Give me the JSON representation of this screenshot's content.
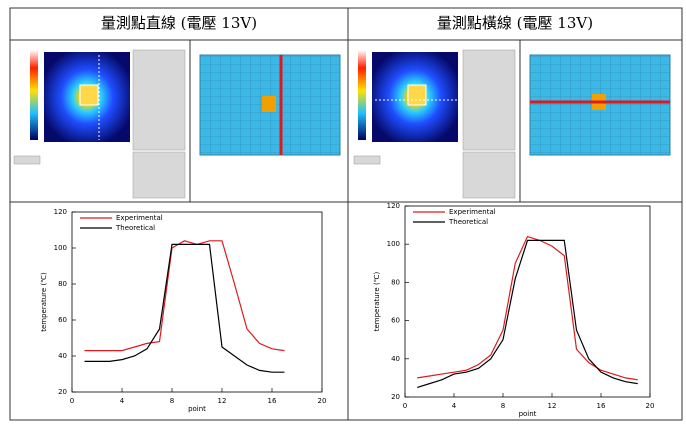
{
  "header": {
    "left_title": "量測點直線 (電壓 13V)",
    "right_title": "量測點橫線 (電壓 13V)"
  },
  "chart_data": [
    {
      "type": "line",
      "xlabel": "point",
      "ylabel": "temperature (℃)",
      "x": [
        1,
        2,
        3,
        4,
        5,
        6,
        7,
        8,
        9,
        10,
        11,
        12,
        13,
        14,
        15,
        16,
        17
      ],
      "series": [
        {
          "name": "Experimental",
          "color": "#e0191e",
          "values": [
            43,
            43,
            43,
            43,
            45,
            47,
            48,
            100,
            104,
            102,
            104,
            104,
            80,
            55,
            47,
            44,
            43
          ]
        },
        {
          "name": "Theoretical",
          "color": "#000000",
          "values": [
            37,
            37,
            37,
            38,
            40,
            44,
            55,
            102,
            102,
            102,
            102,
            45,
            40,
            35,
            32,
            31,
            31
          ]
        }
      ],
      "xlim": [
        0,
        20
      ],
      "xticks": [
        0,
        4,
        8,
        12,
        16,
        20
      ],
      "ylim": [
        20,
        120
      ],
      "yticks": [
        20,
        40,
        60,
        80,
        100,
        120
      ]
    },
    {
      "type": "line",
      "xlabel": "point",
      "ylabel": "temperature (℃)",
      "x": [
        1,
        2,
        3,
        4,
        5,
        6,
        7,
        8,
        9,
        10,
        11,
        12,
        13,
        14,
        15,
        16,
        17,
        18,
        19
      ],
      "series": [
        {
          "name": "Experimental",
          "color": "#e0191e",
          "values": [
            30,
            31,
            32,
            33,
            34,
            37,
            42,
            55,
            90,
            104,
            102,
            99,
            94,
            45,
            38,
            34,
            32,
            30,
            29
          ]
        },
        {
          "name": "Theoretical",
          "color": "#000000",
          "values": [
            25,
            27,
            29,
            32,
            33,
            35,
            40,
            50,
            82,
            102,
            102,
            102,
            102,
            55,
            40,
            33,
            30,
            28,
            27
          ]
        }
      ],
      "xlim": [
        0,
        20
      ],
      "xticks": [
        0,
        4,
        8,
        12,
        16,
        20
      ],
      "ylim": [
        20,
        120
      ],
      "yticks": [
        20,
        40,
        60,
        80,
        100,
        120
      ]
    }
  ]
}
